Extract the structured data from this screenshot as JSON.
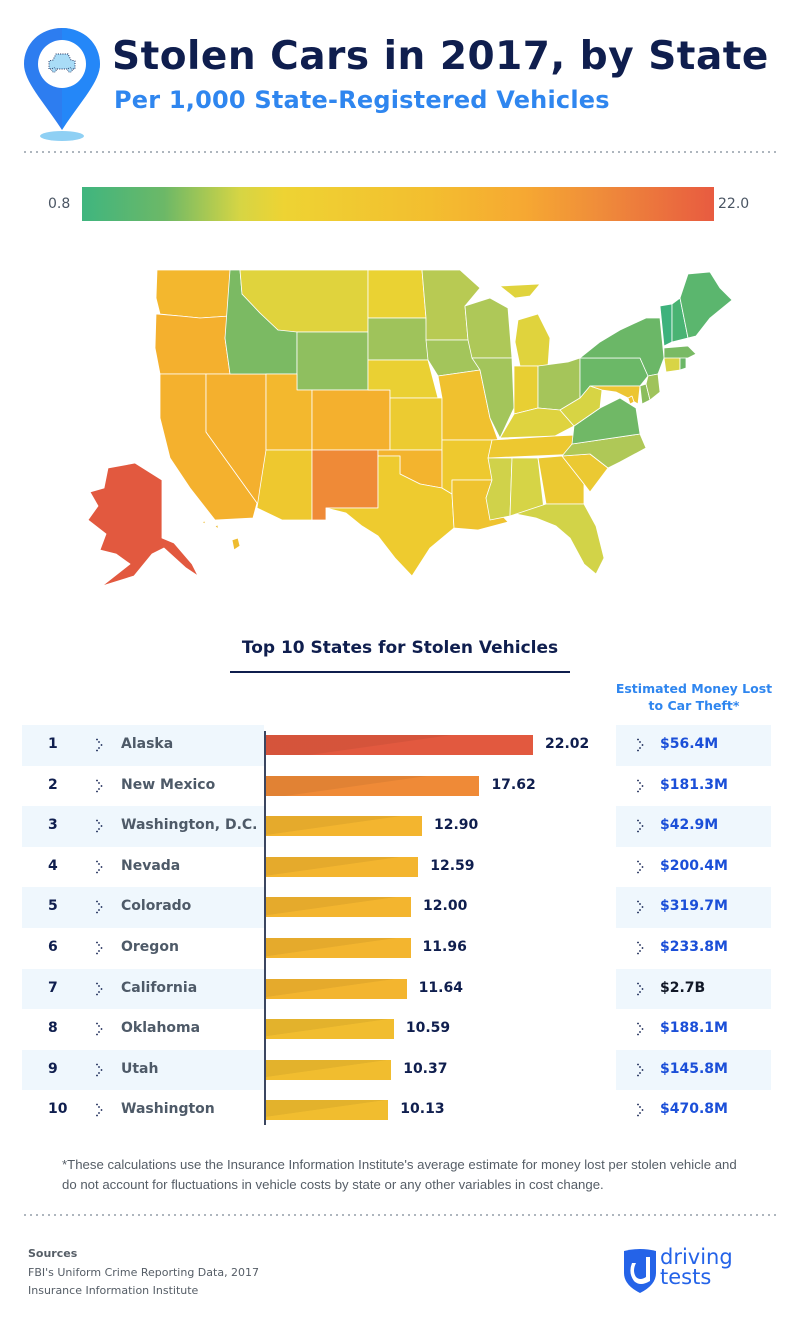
{
  "header": {
    "title": "Stolen Cars in 2017, by State",
    "subtitle": "Per 1,000 State-Registered Vehicles",
    "icon": "map-pin-car-icon"
  },
  "legend": {
    "min_label": "0.8",
    "max_label": "22.0",
    "colors": [
      "#3fb57f",
      "#6cb867",
      "#d6d544",
      "#eed333",
      "#f3be2f",
      "#f6a832",
      "#ef8c3a",
      "#e85b40"
    ]
  },
  "map": {
    "type": "choropleth",
    "description": "US states colored by stolen vehicles per 1,000 registered",
    "state_colors": {
      "AK": "#e2593f",
      "NM": "#ef8a37",
      "NV": "#f4b02e",
      "CO": "#f4b02e",
      "OR": "#f4b02e",
      "CA": "#f4b12e",
      "OK": "#f3b42e",
      "UT": "#f3b82e",
      "WA": "#f3b72e",
      "AZ": "#eec82f",
      "TX": "#eecb2f",
      "MO": "#f0c12f",
      "LA": "#efc32f",
      "AR": "#eec92f",
      "TN": "#edc830",
      "HI": "#eebc30",
      "KS": "#eccb31",
      "NE": "#ead033",
      "ND": "#ead233",
      "IN": "#e8cf33",
      "GA": "#ebc932",
      "SC": "#ebc932",
      "MD": "#ecc532",
      "MT": "#e0d33d",
      "MI": "#e0d33d",
      "KY": "#dfd33f",
      "WV": "#d7d444",
      "AL": "#d6d446",
      "MS": "#d0d24a",
      "FL": "#d2d348",
      "CT": "#d8d445",
      "DE": "#8bbd5c",
      "DC": "#f0c12f",
      "MN": "#b8ca53",
      "WI": "#aec858",
      "IA": "#a3c55b",
      "IL": "#a3c55b",
      "OH": "#a5c55a",
      "NC": "#afc857",
      "SD": "#9fc35b",
      "NJ": "#9fc35b",
      "WY": "#8fbf5f",
      "ID": "#7bba63",
      "VA": "#70b866",
      "PA": "#6bb867",
      "NY": "#6bb767",
      "MA": "#79ba64",
      "RI": "#6bb767",
      "ME": "#5bb66e",
      "NH": "#49b373",
      "VT": "#3db27c"
    }
  },
  "chart_data": {
    "type": "bar",
    "title": "Top 10 States for Stolen Vehicles",
    "xlabel": "",
    "ylabel": "Stolen vehicles per 1,000 state-registered vehicles",
    "orientation": "horizontal",
    "xlim": [
      0,
      22.02
    ],
    "categories": [
      "Alaska",
      "New Mexico",
      "Washington, D.C.",
      "Nevada",
      "Colorado",
      "Oregon",
      "California",
      "Oklahoma",
      "Utah",
      "Washington"
    ],
    "ranks": [
      "1",
      "2",
      "3",
      "4",
      "5",
      "6",
      "7",
      "8",
      "9",
      "10"
    ],
    "values": [
      22.02,
      17.62,
      12.9,
      12.59,
      12.0,
      11.96,
      11.64,
      10.59,
      10.37,
      10.13
    ],
    "value_labels": [
      "22.02",
      "17.62",
      "12.90",
      "12.59",
      "12.00",
      "11.96",
      "11.64",
      "10.59",
      "10.37",
      "10.13"
    ],
    "bar_colors": [
      "#e2593f",
      "#ef8a37",
      "#f3b52f",
      "#f3b52f",
      "#f3b52f",
      "#f3b52f",
      "#f3b52f",
      "#f1bd2f",
      "#f1bd2f",
      "#f1bd2f"
    ],
    "side_column": {
      "header": "Estimated Money Lost to Car Theft*",
      "values": [
        "$56.4M",
        "$181.3M",
        "$42.9M",
        "$200.4M",
        "$319.7M",
        "$233.8M",
        "$2.7B",
        "$188.1M",
        "$145.8M",
        "$470.8M"
      ]
    }
  },
  "table": {
    "title": "Top 10 States for Stolen Vehicles",
    "money_header": "Estimated Money Lost to Car Theft*",
    "rows": [
      {
        "rank": "1",
        "state": "Alaska",
        "value": "22.02",
        "money": "$56.4M"
      },
      {
        "rank": "2",
        "state": "New Mexico",
        "value": "17.62",
        "money": "$181.3M"
      },
      {
        "rank": "3",
        "state": "Washington, D.C.",
        "value": "12.90",
        "money": "$42.9M"
      },
      {
        "rank": "4",
        "state": "Nevada",
        "value": "12.59",
        "money": "$200.4M"
      },
      {
        "rank": "5",
        "state": "Colorado",
        "value": "12.00",
        "money": "$319.7M"
      },
      {
        "rank": "6",
        "state": "Oregon",
        "value": "11.96",
        "money": "$233.8M"
      },
      {
        "rank": "7",
        "state": "California",
        "value": "11.64",
        "money": "$2.7B"
      },
      {
        "rank": "8",
        "state": "Oklahoma",
        "value": "10.59",
        "money": "$188.1M"
      },
      {
        "rank": "9",
        "state": "Utah",
        "value": "10.37",
        "money": "$145.8M"
      },
      {
        "rank": "10",
        "state": "Washington",
        "value": "10.13",
        "money": "$470.8M"
      }
    ]
  },
  "footnote": "*These calculations use the Insurance Information Institute's average estimate for money lost per stolen vehicle and do not account for fluctuations in vehicle costs by state or any other variables in cost change.",
  "sources": {
    "heading": "Sources",
    "items": [
      "FBI's Uniform Crime Reporting Data, 2017",
      "Insurance Information Institute"
    ]
  },
  "brand": {
    "line1": "driving",
    "line2": "tests",
    "color": "#2463e8"
  },
  "colors": {
    "navy": "#0f1e4e",
    "accent_blue": "#2f86ef",
    "money_blue": "#1b4fd8",
    "row_shade": "#eff7fd"
  }
}
